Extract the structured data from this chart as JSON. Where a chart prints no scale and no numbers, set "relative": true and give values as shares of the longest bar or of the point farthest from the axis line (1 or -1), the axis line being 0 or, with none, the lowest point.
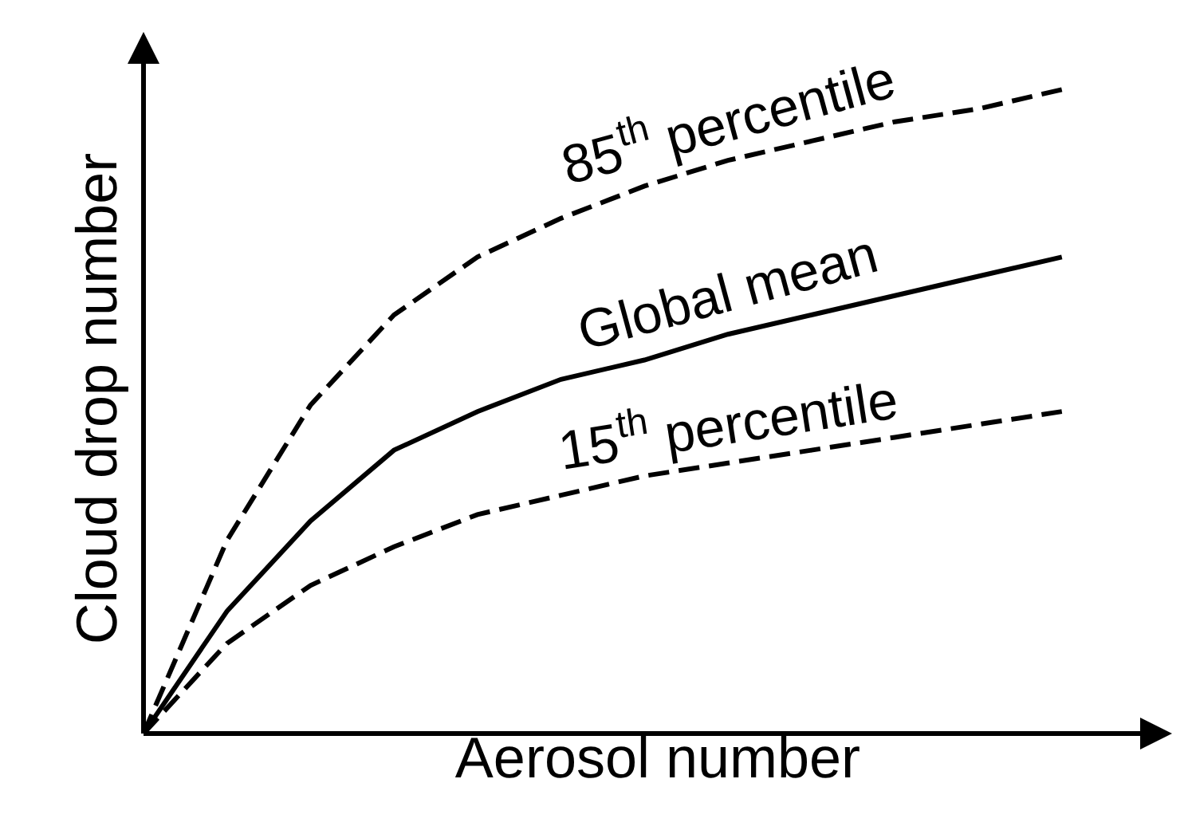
{
  "chart_data": {
    "type": "line",
    "relative": true,
    "xlabel": "Aerosol number",
    "ylabel": "Cloud drop number",
    "categories": [
      null,
      null,
      null,
      null,
      null,
      null,
      null,
      null,
      null,
      null,
      null,
      null
    ],
    "series": [
      {
        "name": "85$^{th}$ percentile",
        "color": "#000000",
        "line_style": "dashed",
        "values": [
          0,
          0.3,
          0.51,
          0.65,
          0.74,
          0.8,
          0.85,
          0.89,
          0.92,
          0.95,
          0.97,
          1
        ]
      },
      {
        "name": "Global mean",
        "color": "#000000",
        "line_style": "solid",
        "values": [
          0,
          0.19,
          0.33,
          0.44,
          0.5,
          0.55,
          0.58,
          0.62,
          0.65,
          0.68,
          0.71,
          0.74
        ]
      },
      {
        "name": "15$^{th}$ percentile",
        "color": "#000000",
        "line_style": "dashed",
        "values": [
          0,
          0.14,
          0.23,
          0.29,
          0.34,
          0.37,
          0.4,
          0.42,
          0.44,
          0.46,
          0.48,
          0.5
        ]
      }
    ],
    "grid": false,
    "legend": false,
    "marker": "none"
  }
}
